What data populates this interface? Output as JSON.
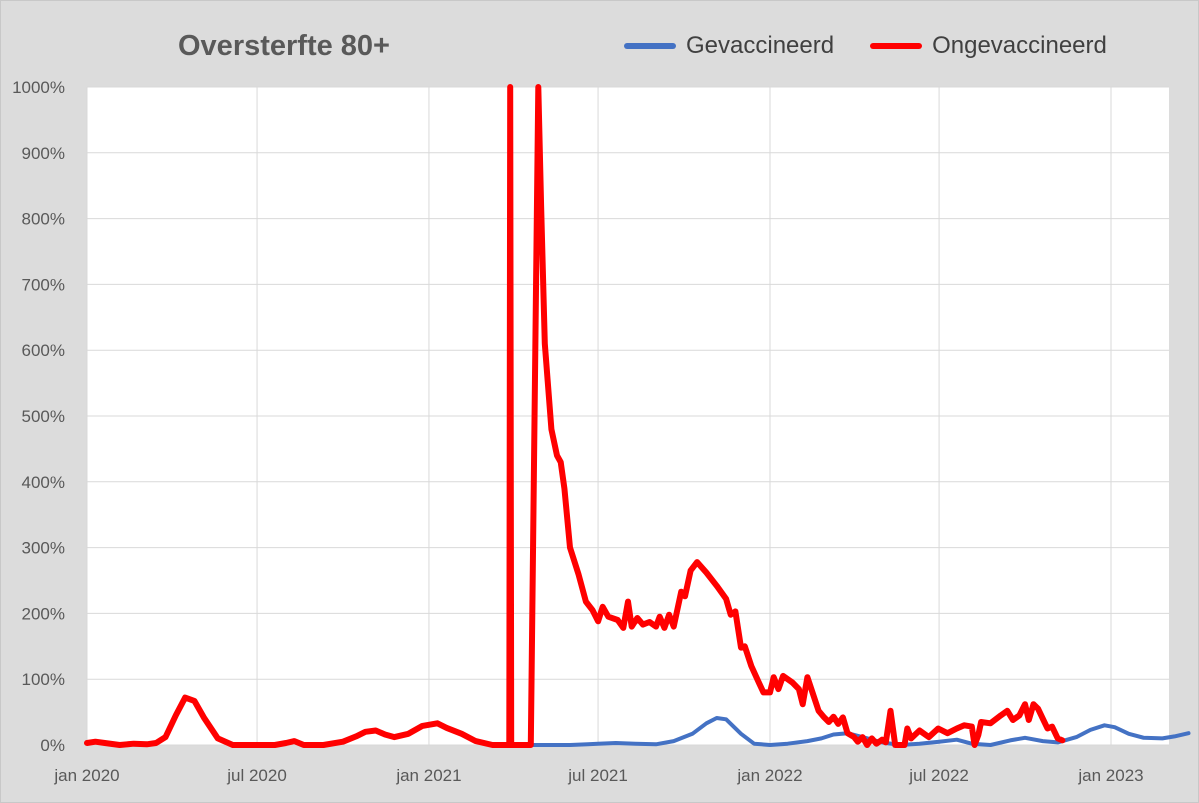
{
  "chart_data": {
    "type": "line",
    "title": "Oversterfte 80+",
    "xlabel": "",
    "ylabel": "",
    "ylim": [
      0,
      1000
    ],
    "x_ticks": [
      "2020-01-01",
      "2020-07-01",
      "2021-01-01",
      "2021-07-01",
      "2022-01-01",
      "2022-07-01",
      "2023-01-01"
    ],
    "x_tick_labels": [
      "jan 2020",
      "jul 2020",
      "jan 2021",
      "jul 2021",
      "jan 2022",
      "jul 2022",
      "jan 2023"
    ],
    "y_ticks": [
      0,
      100,
      200,
      300,
      400,
      500,
      600,
      700,
      800,
      900,
      1000
    ],
    "y_tick_labels": [
      "0%",
      "100%",
      "200%",
      "300%",
      "400%",
      "500%",
      "600%",
      "700%",
      "800%",
      "900%",
      "1000%"
    ],
    "grid": true,
    "legend_position": "top-right",
    "series": [
      {
        "name": "Gevaccineerd",
        "color": "#4472c4",
        "points": [
          [
            "2021-04-01",
            0
          ],
          [
            "2021-05-01",
            0
          ],
          [
            "2021-06-01",
            0
          ],
          [
            "2021-06-20",
            1
          ],
          [
            "2021-07-01",
            2
          ],
          [
            "2021-07-20",
            3
          ],
          [
            "2021-08-10",
            2
          ],
          [
            "2021-09-01",
            1
          ],
          [
            "2021-09-20",
            6
          ],
          [
            "2021-10-10",
            17
          ],
          [
            "2021-10-25",
            33
          ],
          [
            "2021-11-05",
            41
          ],
          [
            "2021-11-15",
            39
          ],
          [
            "2021-12-01",
            17
          ],
          [
            "2021-12-15",
            2
          ],
          [
            "2022-01-01",
            0
          ],
          [
            "2022-01-20",
            2
          ],
          [
            "2022-02-10",
            6
          ],
          [
            "2022-02-25",
            10
          ],
          [
            "2022-03-10",
            16
          ],
          [
            "2022-03-25",
            18
          ],
          [
            "2022-04-10",
            12
          ],
          [
            "2022-05-01",
            4
          ],
          [
            "2022-05-20",
            0
          ],
          [
            "2022-06-10",
            2
          ],
          [
            "2022-07-01",
            5
          ],
          [
            "2022-07-20",
            8
          ],
          [
            "2022-08-05",
            2
          ],
          [
            "2022-08-25",
            0
          ],
          [
            "2022-09-15",
            7
          ],
          [
            "2022-10-01",
            11
          ],
          [
            "2022-10-20",
            6
          ],
          [
            "2022-11-05",
            4
          ],
          [
            "2022-11-25",
            12
          ],
          [
            "2022-12-10",
            23
          ],
          [
            "2022-12-25",
            30
          ],
          [
            "2023-01-05",
            27
          ],
          [
            "2023-01-20",
            17
          ],
          [
            "2023-02-05",
            11
          ],
          [
            "2023-02-25",
            10
          ],
          [
            "2023-03-10",
            13
          ],
          [
            "2023-03-25",
            18
          ]
        ]
      },
      {
        "name": "Ongevaccineerd",
        "color": "#ff0000",
        "points": [
          [
            "2020-01-01",
            3
          ],
          [
            "2020-01-10",
            5
          ],
          [
            "2020-01-20",
            3
          ],
          [
            "2020-02-05",
            0
          ],
          [
            "2020-02-20",
            2
          ],
          [
            "2020-03-05",
            1
          ],
          [
            "2020-03-15",
            3
          ],
          [
            "2020-03-25",
            12
          ],
          [
            "2020-04-05",
            45
          ],
          [
            "2020-04-15",
            72
          ],
          [
            "2020-04-25",
            67
          ],
          [
            "2020-05-05",
            42
          ],
          [
            "2020-05-20",
            10
          ],
          [
            "2020-06-05",
            0
          ],
          [
            "2020-06-20",
            0
          ],
          [
            "2020-07-05",
            0
          ],
          [
            "2020-07-20",
            0
          ],
          [
            "2020-08-01",
            3
          ],
          [
            "2020-08-10",
            6
          ],
          [
            "2020-08-20",
            0
          ],
          [
            "2020-09-10",
            0
          ],
          [
            "2020-10-01",
            5
          ],
          [
            "2020-10-15",
            13
          ],
          [
            "2020-10-25",
            20
          ],
          [
            "2020-11-05",
            22
          ],
          [
            "2020-11-15",
            16
          ],
          [
            "2020-11-25",
            12
          ],
          [
            "2020-12-10",
            17
          ],
          [
            "2020-12-25",
            29
          ],
          [
            "2021-01-10",
            33
          ],
          [
            "2021-01-20",
            26
          ],
          [
            "2021-02-05",
            17
          ],
          [
            "2021-02-20",
            6
          ],
          [
            "2021-03-10",
            0
          ],
          [
            "2021-03-28",
            0
          ],
          [
            "2021-03-29",
            1000
          ],
          [
            "2021-03-30",
            0
          ],
          [
            "2021-04-01",
            0
          ],
          [
            "2021-04-20",
            0
          ],
          [
            "2021-04-28",
            1000
          ],
          [
            "2021-05-01",
            820
          ],
          [
            "2021-05-05",
            610
          ],
          [
            "2021-05-12",
            480
          ],
          [
            "2021-05-18",
            440
          ],
          [
            "2021-05-22",
            430
          ],
          [
            "2021-05-26",
            390
          ],
          [
            "2021-06-01",
            300
          ],
          [
            "2021-06-10",
            260
          ],
          [
            "2021-06-18",
            218
          ],
          [
            "2021-06-25",
            205
          ],
          [
            "2021-07-01",
            188
          ],
          [
            "2021-07-06",
            210
          ],
          [
            "2021-07-12",
            195
          ],
          [
            "2021-07-22",
            190
          ],
          [
            "2021-07-28",
            178
          ],
          [
            "2021-08-02",
            218
          ],
          [
            "2021-08-06",
            180
          ],
          [
            "2021-08-12",
            193
          ],
          [
            "2021-08-18",
            183
          ],
          [
            "2021-08-25",
            187
          ],
          [
            "2021-09-01",
            180
          ],
          [
            "2021-09-05",
            195
          ],
          [
            "2021-09-10",
            178
          ],
          [
            "2021-09-15",
            198
          ],
          [
            "2021-09-20",
            180
          ],
          [
            "2021-09-28",
            233
          ],
          [
            "2021-10-02",
            226
          ],
          [
            "2021-10-08",
            265
          ],
          [
            "2021-10-15",
            278
          ],
          [
            "2021-10-25",
            262
          ],
          [
            "2021-11-05",
            242
          ],
          [
            "2021-11-15",
            222
          ],
          [
            "2021-11-20",
            198
          ],
          [
            "2021-11-25",
            203
          ],
          [
            "2021-12-01",
            148
          ],
          [
            "2021-12-05",
            150
          ],
          [
            "2021-12-12",
            120
          ],
          [
            "2021-12-20",
            95
          ],
          [
            "2021-12-25",
            80
          ],
          [
            "2022-01-01",
            80
          ],
          [
            "2022-01-05",
            103
          ],
          [
            "2022-01-10",
            85
          ],
          [
            "2022-01-15",
            105
          ],
          [
            "2022-01-25",
            95
          ],
          [
            "2022-02-01",
            85
          ],
          [
            "2022-02-05",
            62
          ],
          [
            "2022-02-10",
            103
          ],
          [
            "2022-02-15",
            82
          ],
          [
            "2022-02-22",
            52
          ],
          [
            "2022-02-28",
            42
          ],
          [
            "2022-03-05",
            35
          ],
          [
            "2022-03-10",
            43
          ],
          [
            "2022-03-15",
            32
          ],
          [
            "2022-03-20",
            42
          ],
          [
            "2022-03-25",
            18
          ],
          [
            "2022-04-01",
            12
          ],
          [
            "2022-04-05",
            5
          ],
          [
            "2022-04-10",
            12
          ],
          [
            "2022-04-15",
            0
          ],
          [
            "2022-04-20",
            10
          ],
          [
            "2022-04-25",
            2
          ],
          [
            "2022-05-01",
            8
          ],
          [
            "2022-05-05",
            4
          ],
          [
            "2022-05-10",
            52
          ],
          [
            "2022-05-15",
            0
          ],
          [
            "2022-05-25",
            0
          ],
          [
            "2022-05-28",
            25
          ],
          [
            "2022-06-01",
            10
          ],
          [
            "2022-06-10",
            22
          ],
          [
            "2022-06-20",
            12
          ],
          [
            "2022-06-30",
            25
          ],
          [
            "2022-07-10",
            18
          ],
          [
            "2022-07-20",
            25
          ],
          [
            "2022-07-28",
            30
          ],
          [
            "2022-08-05",
            28
          ],
          [
            "2022-08-08",
            0
          ],
          [
            "2022-08-12",
            15
          ],
          [
            "2022-08-15",
            35
          ],
          [
            "2022-08-25",
            33
          ],
          [
            "2022-09-05",
            45
          ],
          [
            "2022-09-12",
            52
          ],
          [
            "2022-09-18",
            38
          ],
          [
            "2022-09-25",
            45
          ],
          [
            "2022-10-01",
            62
          ],
          [
            "2022-10-05",
            38
          ],
          [
            "2022-10-10",
            62
          ],
          [
            "2022-10-15",
            55
          ],
          [
            "2022-10-20",
            40
          ],
          [
            "2022-10-25",
            25
          ],
          [
            "2022-10-30",
            28
          ],
          [
            "2022-11-05",
            10
          ],
          [
            "2022-11-10",
            7
          ]
        ]
      }
    ]
  }
}
